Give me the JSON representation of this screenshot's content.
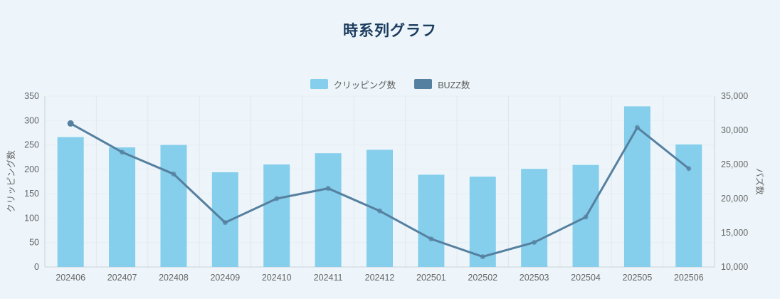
{
  "colors": {
    "background": "#EDF5FA",
    "title": "#1C3C5E",
    "axis_text": "#666666",
    "grid_v": "#E2E8ED",
    "grid_h": "#E7EEF3",
    "axis_line": "#C9D2D9",
    "bar": "#85CEEC",
    "line": "#56809F"
  },
  "chart_data": {
    "type": "bar+line (dual axis)",
    "title": "時系列グラフ",
    "legend": [
      "クリッピング数",
      "BUZZ数"
    ],
    "legend_position": "top-center",
    "grid": "vertical category gridlines + faint horizontal gridlines",
    "categories": [
      "202406",
      "202407",
      "202408",
      "202409",
      "202410",
      "202411",
      "202412",
      "202501",
      "202502",
      "202503",
      "202504",
      "202505",
      "202506"
    ],
    "series": [
      {
        "name": "クリッピング数",
        "type": "bar",
        "axis": "left",
        "color": "#85CEEC",
        "values": [
          266,
          245,
          250,
          194,
          210,
          233,
          240,
          189,
          185,
          201,
          209,
          329,
          251
        ]
      },
      {
        "name": "BUZZ数",
        "type": "line",
        "axis": "right",
        "color": "#56809F",
        "values": [
          31000,
          26800,
          23600,
          16500,
          20000,
          21500,
          18200,
          14100,
          11500,
          13600,
          17300,
          30400,
          24400
        ]
      }
    ],
    "left_axis": {
      "name": "クリッピング数",
      "min": 0,
      "max": 350,
      "ticks": [
        0,
        50,
        100,
        150,
        200,
        250,
        300,
        350
      ]
    },
    "right_axis": {
      "name": "バズ数",
      "min": 10000,
      "max": 35000,
      "tick_values": [
        10000,
        15000,
        20000,
        25000,
        30000,
        35000
      ],
      "tick_labels": [
        "10,000",
        "15,000",
        "20,000",
        "25,000",
        "30,000",
        "35,000"
      ]
    }
  }
}
